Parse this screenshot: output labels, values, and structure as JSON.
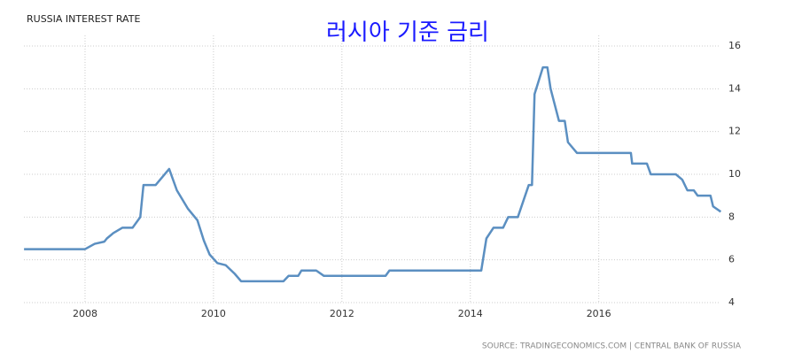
{
  "chart_data": {
    "type": "line",
    "title": "RUSSIA INTEREST RATE",
    "annotation": "러시아 기준 금리",
    "source": "SOURCE: TRADINGECONOMICS.COM | CENTRAL BANK OF RUSSIA",
    "x": [
      2007.05,
      2008.0,
      2008.15,
      2008.3,
      2008.34,
      2008.44,
      2008.58,
      2008.74,
      2008.86,
      2008.91,
      2009.1,
      2009.31,
      2009.43,
      2009.6,
      2009.75,
      2009.85,
      2009.94,
      2010.06,
      2010.19,
      2010.33,
      2010.43,
      2011.09,
      2011.17,
      2011.32,
      2011.37,
      2011.6,
      2011.72,
      2012.68,
      2012.74,
      2014.17,
      2014.25,
      2014.36,
      2014.51,
      2014.59,
      2014.74,
      2014.91,
      2014.96,
      2015.0,
      2015.13,
      2015.2,
      2015.25,
      2015.38,
      2015.47,
      2015.52,
      2015.66,
      2016.5,
      2016.52,
      2016.75,
      2016.81,
      2017.2,
      2017.3,
      2017.38,
      2017.48,
      2017.54,
      2017.74,
      2017.78,
      2017.9
    ],
    "series": [
      {
        "color": "#5b8fc1",
        "values": [
          6.5,
          6.5,
          6.75,
          6.85,
          7.0,
          7.25,
          7.5,
          7.5,
          8.0,
          9.5,
          9.5,
          10.25,
          9.25,
          8.4,
          7.85,
          6.9,
          6.25,
          5.85,
          5.75,
          5.35,
          5.0,
          5.0,
          5.25,
          5.25,
          5.5,
          5.5,
          5.25,
          5.25,
          5.5,
          5.5,
          7.0,
          7.5,
          7.5,
          8.0,
          8.0,
          9.5,
          9.5,
          13.75,
          15.0,
          15.0,
          14.0,
          12.5,
          12.5,
          11.5,
          11.0,
          11.0,
          10.5,
          10.5,
          10.0,
          10.0,
          9.75,
          9.25,
          9.25,
          9.0,
          9.0,
          8.5,
          8.25
        ]
      }
    ],
    "xlim": [
      2007,
      2017.95
    ],
    "xticks": [
      2008,
      2010,
      2012,
      2014,
      2016
    ],
    "ylim": [
      4,
      16
    ],
    "yticks": [
      4,
      6,
      8,
      10,
      12,
      14,
      16
    ],
    "grid": true
  }
}
